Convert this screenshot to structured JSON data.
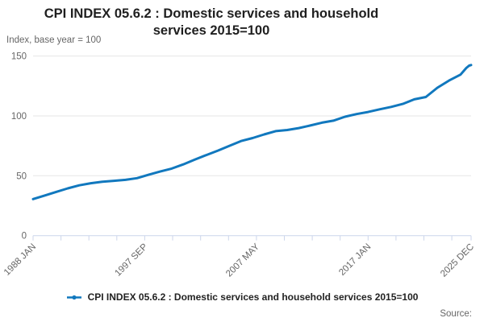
{
  "title_lines": [
    "CPI INDEX 05.6.2 : Domestic services and household",
    "services 2015=100"
  ],
  "subtitle": "Index, base year = 100",
  "source_label": "Source:",
  "legend": {
    "label": "CPI INDEX 05.6.2 : Domestic services and household services 2015=100"
  },
  "colors": {
    "line": "#1178be",
    "grid": "#e6e6e6",
    "axis": "#ccd6eb",
    "axis_text": "#666666"
  },
  "chart_data": {
    "type": "line",
    "title": "CPI INDEX 05.6.2 : Domestic services and household services 2015=100",
    "ylabel": "Index, base year = 100",
    "ylim": [
      0,
      150
    ],
    "yticks": [
      0,
      50,
      100,
      150
    ],
    "grid": "horizontal",
    "legend_position": "bottom",
    "x_axis": {
      "start": "1988 JAN",
      "end": "2025 DEC",
      "total_months": 455,
      "tick_interval_months": 29,
      "labeled_ticks": [
        {
          "label": "1988 JAN",
          "m": 0
        },
        {
          "label": "1997 SEP",
          "m": 116
        },
        {
          "label": "2007 MAY",
          "m": 232
        },
        {
          "label": "2017 JAN",
          "m": 348
        },
        {
          "label": "2025 DEC",
          "m": 455
        }
      ]
    },
    "series": [
      {
        "name": "CPI INDEX 05.6.2 : Domestic services and household services 2015=100",
        "points": [
          {
            "t": "1988 JAN",
            "m": 0,
            "v": 30.5
          },
          {
            "t": "1989 JAN",
            "m": 12,
            "v": 33.5
          },
          {
            "t": "1990 JAN",
            "m": 24,
            "v": 36.5
          },
          {
            "t": "1991 JAN",
            "m": 36,
            "v": 39.5
          },
          {
            "t": "1992 JAN",
            "m": 48,
            "v": 42.0
          },
          {
            "t": "1993 JAN",
            "m": 60,
            "v": 43.8
          },
          {
            "t": "1994 JAN",
            "m": 72,
            "v": 45.0
          },
          {
            "t": "1995 JAN",
            "m": 84,
            "v": 45.8
          },
          {
            "t": "1996 JAN",
            "m": 96,
            "v": 46.6
          },
          {
            "t": "1997 JAN",
            "m": 108,
            "v": 48.0
          },
          {
            "t": "1998 JAN",
            "m": 120,
            "v": 50.8
          },
          {
            "t": "1999 JAN",
            "m": 132,
            "v": 53.5
          },
          {
            "t": "2000 JAN",
            "m": 144,
            "v": 56.0
          },
          {
            "t": "2001 JAN",
            "m": 156,
            "v": 59.5
          },
          {
            "t": "2002 JAN",
            "m": 168,
            "v": 63.5
          },
          {
            "t": "2003 JAN",
            "m": 180,
            "v": 67.3
          },
          {
            "t": "2004 JAN",
            "m": 192,
            "v": 71.0
          },
          {
            "t": "2005 JAN",
            "m": 204,
            "v": 75.0
          },
          {
            "t": "2006 JAN",
            "m": 216,
            "v": 79.0
          },
          {
            "t": "2007 JAN",
            "m": 228,
            "v": 81.5
          },
          {
            "t": "2008 JAN",
            "m": 240,
            "v": 84.5
          },
          {
            "t": "2009 JAN",
            "m": 252,
            "v": 87.3
          },
          {
            "t": "2010 JAN",
            "m": 264,
            "v": 88.2
          },
          {
            "t": "2011 JAN",
            "m": 276,
            "v": 89.8
          },
          {
            "t": "2012 JAN",
            "m": 288,
            "v": 92.0
          },
          {
            "t": "2013 JAN",
            "m": 300,
            "v": 94.3
          },
          {
            "t": "2014 JAN",
            "m": 312,
            "v": 96.0
          },
          {
            "t": "2015 JAN",
            "m": 324,
            "v": 99.3
          },
          {
            "t": "2016 JAN",
            "m": 336,
            "v": 101.5
          },
          {
            "t": "2017 JAN",
            "m": 348,
            "v": 103.3
          },
          {
            "t": "2018 JAN",
            "m": 360,
            "v": 105.5
          },
          {
            "t": "2019 JAN",
            "m": 372,
            "v": 107.5
          },
          {
            "t": "2020 JAN",
            "m": 384,
            "v": 110.0
          },
          {
            "t": "2021 JAN",
            "m": 396,
            "v": 113.8
          },
          {
            "t": "2022 JAN",
            "m": 408,
            "v": 115.8
          },
          {
            "t": "2023 JAN",
            "m": 420,
            "v": 123.5
          },
          {
            "t": "2024 JAN",
            "m": 432,
            "v": 129.5
          },
          {
            "t": "2025 JAN",
            "m": 444,
            "v": 134.5
          },
          {
            "t": "2025 JUL",
            "m": 450,
            "v": 140.0
          },
          {
            "t": "2025 OCT",
            "m": 453,
            "v": 142.0
          },
          {
            "t": "2025 DEC",
            "m": 455,
            "v": 142.5
          }
        ]
      }
    ]
  }
}
